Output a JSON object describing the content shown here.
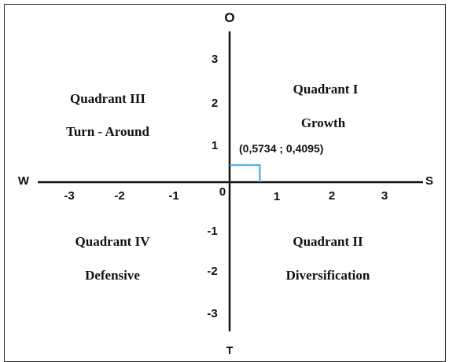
{
  "colors": {
    "axis": "#111111",
    "frame": "#333333",
    "marker": "#3aa8e0",
    "background": "#ffffff"
  },
  "axes": {
    "top_label": "O",
    "bottom_label": "T",
    "left_label": "W",
    "right_label": "S",
    "origin_label": "0",
    "x_ticks_negative": [
      "-3",
      "-2",
      "-1"
    ],
    "x_ticks_positive": [
      "1",
      "2",
      "3"
    ],
    "y_ticks_positive": [
      "3",
      "2",
      "1"
    ],
    "y_ticks_negative": [
      "-1",
      "-2",
      "-3"
    ]
  },
  "quadrants": {
    "q1": {
      "name": "Quadrant I",
      "strategy": "Growth"
    },
    "q2": {
      "name": "Quadrant II",
      "strategy": "Diversification"
    },
    "q3": {
      "name": "Quadrant III",
      "strategy": "Turn - Around"
    },
    "q4": {
      "name": "Quadrant IV",
      "strategy": "Defensive"
    }
  },
  "point": {
    "label": "(0,5734 ; 0,4095)",
    "x": 0.5734,
    "y": 0.4095
  }
}
